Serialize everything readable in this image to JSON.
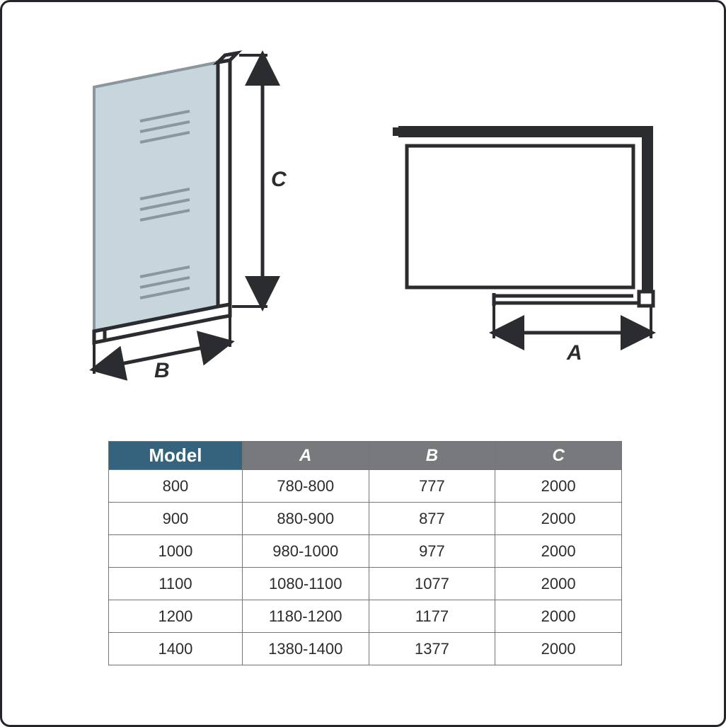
{
  "diagram": {
    "stroke": "#2a2c30",
    "stroke_width": 7,
    "glass_fill": "#c7d5dc",
    "glass_stroke": "#8a979f",
    "label_font": "bold italic 30px Arial",
    "labels": {
      "A": "A",
      "B": "B",
      "C": "C"
    }
  },
  "table": {
    "header_model_bg": "#35637e",
    "header_dim_bg": "#77797d",
    "header_text_color": "#ffffff",
    "border_color": "#737579",
    "cell_text_color": "#2a2c30",
    "columns": [
      "Model",
      "A",
      "B",
      "C"
    ],
    "rows": [
      [
        "800",
        "780-800",
        "777",
        "2000"
      ],
      [
        "900",
        "880-900",
        "877",
        "2000"
      ],
      [
        "1000",
        "980-1000",
        "977",
        "2000"
      ],
      [
        "1100",
        "1080-1100",
        "1077",
        "2000"
      ],
      [
        "1200",
        "1180-1200",
        "1177",
        "2000"
      ],
      [
        "1400",
        "1380-1400",
        "1377",
        "2000"
      ]
    ]
  }
}
